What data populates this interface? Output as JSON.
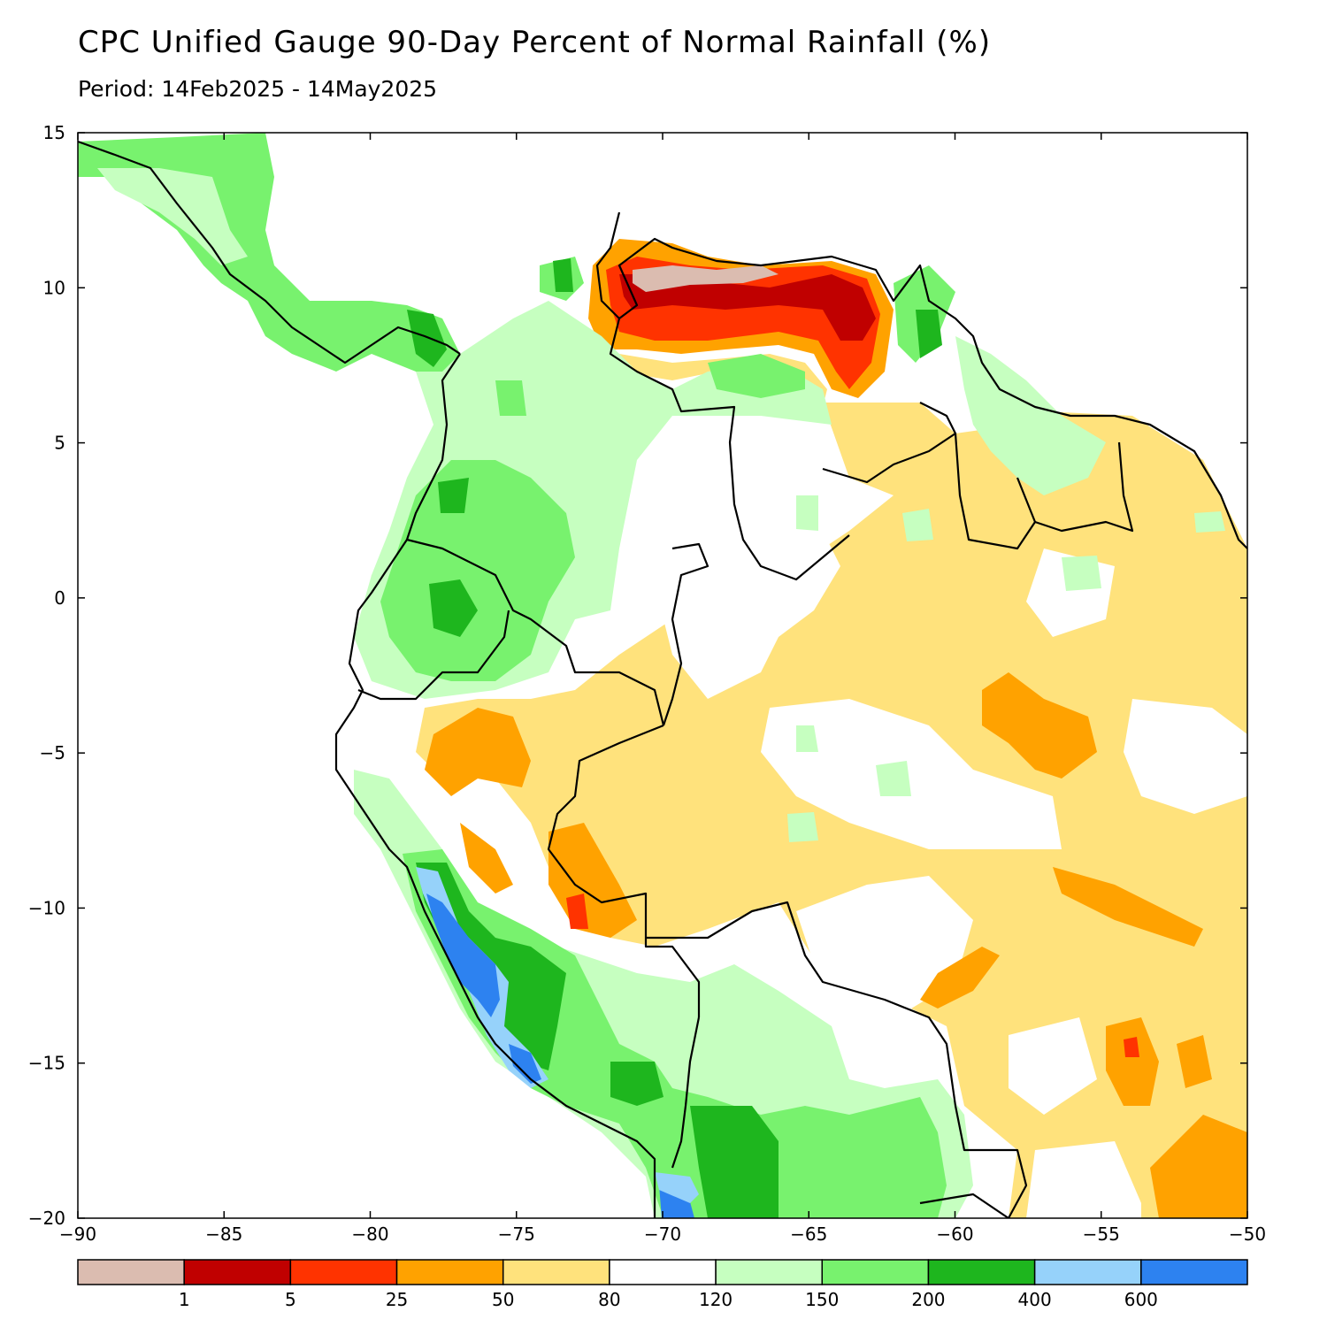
{
  "title": "CPC Unified Gauge 90-Day Percent of Normal Rainfall (%)",
  "subtitle": "Period: 14Feb2025 - 14May2025",
  "map": {
    "lon_range": [
      -90,
      -50
    ],
    "lat_range": [
      -20,
      15
    ],
    "lon_ticks": [
      -90,
      -85,
      -80,
      -75,
      -70,
      -65,
      -60,
      -55,
      -50
    ],
    "lat_ticks": [
      15,
      10,
      5,
      0,
      -5,
      -10,
      -15,
      -20
    ],
    "lon_tick_labels": [
      "−90",
      "−85",
      "−80",
      "−75",
      "−70",
      "−65",
      "−60",
      "−55",
      "−50"
    ],
    "lat_tick_labels": [
      "15",
      "10",
      "5",
      "0",
      "−5",
      "−10",
      "−15",
      "−20"
    ]
  },
  "colorbar": {
    "colors": [
      "#dbbcb0",
      "#c00000",
      "#ff3300",
      "#ffa200",
      "#ffe27c",
      "#ffffff",
      "#c6ffc0",
      "#78f26e",
      "#1eb61e",
      "#96d2fa",
      "#2d82f0"
    ],
    "labels": [
      "1",
      "5",
      "25",
      "50",
      "80",
      "120",
      "150",
      "200",
      "400",
      "600"
    ]
  },
  "legend_colors": {
    "lt1": "#dbbcb0",
    "c1_5": "#c00000",
    "c5_25": "#ff3300",
    "c25_50": "#ffa200",
    "c50_80": "#ffe27c",
    "c80_120": "#ffffff",
    "c120_150": "#c6ffc0",
    "c150_200": "#78f26e",
    "c200_400": "#1eb61e",
    "c400_600": "#96d2fa",
    "gt600": "#2d82f0"
  }
}
